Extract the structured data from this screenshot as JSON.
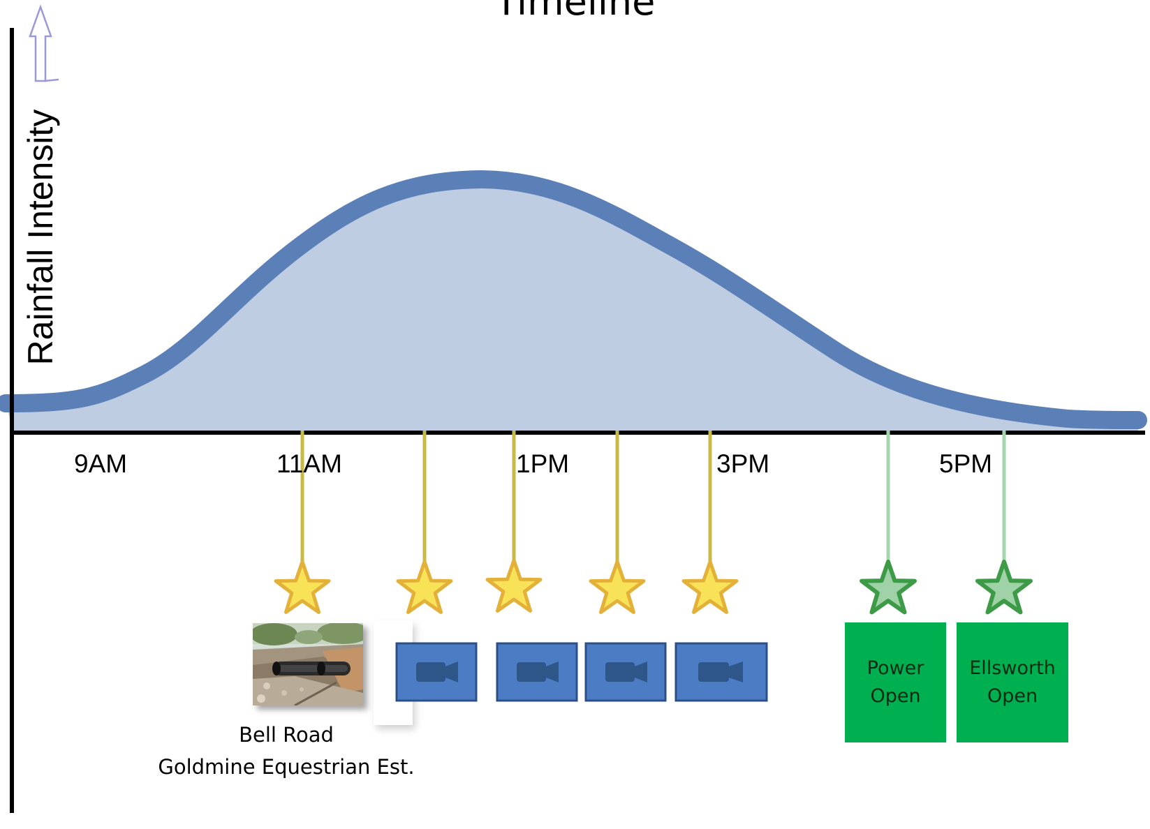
{
  "title": "Timeline",
  "y_axis_label": "Rainfall Intensity",
  "time_ticks": [
    "9AM",
    "11AM",
    "1PM",
    "3PM",
    "5PM"
  ],
  "caption": {
    "line1": "Bell Road",
    "line2": "Goldmine  Equestrian Est."
  },
  "green_boxes": [
    {
      "line1": "Power",
      "line2": "Open"
    },
    {
      "line1": "Ellsworth",
      "line2": "Open"
    }
  ],
  "colors": {
    "curve_stroke": "#5b7fb7",
    "curve_fill": "#bfcde3",
    "axis": "#000000",
    "yellow_star": "#f7e258",
    "yellow_star_stroke": "#e3b13a",
    "yellow_line": "#c9ba45",
    "green_star": "#9fd2a6",
    "green_star_stroke": "#3d9a46",
    "green_line": "#a6d6ad",
    "camera_box": "#4c7cc4",
    "camera_box_stroke": "#2b4f86",
    "green_box": "#00b050",
    "arrow": "#9a98d8"
  },
  "icons": {
    "up_arrow": "up-arrow-icon",
    "yellow_star": "star-icon",
    "green_star": "star-icon",
    "camera": "video-camera-icon",
    "photo": "culvert-photo"
  },
  "chart_data": {
    "type": "area",
    "title": "Timeline",
    "xlabel": "",
    "ylabel": "Rainfall Intensity",
    "x_tick_labels": [
      "9AM",
      "11AM",
      "1PM",
      "3PM",
      "5PM"
    ]
  }
}
